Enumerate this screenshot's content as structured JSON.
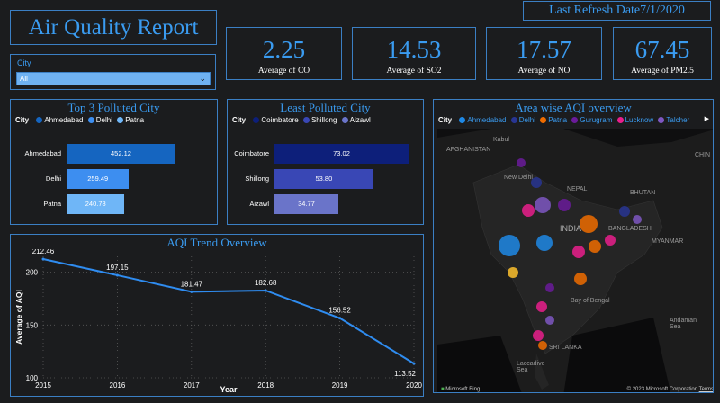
{
  "header": {
    "title": "Air Quality Report",
    "refresh_label": "Last Refresh Date7/1/2020"
  },
  "cards": [
    {
      "value": "2.25",
      "label": "Average of CO"
    },
    {
      "value": "14.53",
      "label": "Average of SO2"
    },
    {
      "value": "17.57",
      "label": "Average of NO"
    },
    {
      "value": "67.45",
      "label": "Average of PM2.5"
    }
  ],
  "filter": {
    "label": "City",
    "selected": "All"
  },
  "top_polluted": {
    "title": "Top 3 Polluted City",
    "legend_title": "City",
    "legend": [
      {
        "name": "Ahmedabad",
        "color": "#1565c0"
      },
      {
        "name": "Delhi",
        "color": "#3d8ef0"
      },
      {
        "name": "Patna",
        "color": "#6fb6f7"
      }
    ]
  },
  "least_polluted": {
    "title": "Least Polluted City",
    "legend_title": "City",
    "legend": [
      {
        "name": "Coimbatore",
        "color": "#0d1f7a"
      },
      {
        "name": "Shillong",
        "color": "#3947b5"
      },
      {
        "name": "Aizawl",
        "color": "#6a74c9"
      }
    ]
  },
  "trend": {
    "title": "AQI Trend Overview",
    "xlabel": "Year",
    "ylabel": "Average of AQI"
  },
  "map": {
    "title": "Area wise AQI overview",
    "legend_title": "City",
    "legend": [
      {
        "name": "Ahmedabad",
        "color": "#1e88e5"
      },
      {
        "name": "Delhi",
        "color": "#283593"
      },
      {
        "name": "Patna",
        "color": "#ef6c00"
      },
      {
        "name": "Gurugram",
        "color": "#6a1b9a"
      },
      {
        "name": "Lucknow",
        "color": "#e91e8c"
      },
      {
        "name": "Talcher",
        "color": "#7e57c2"
      }
    ],
    "labels": {
      "kabul": "Kabul",
      "afghanistan": "AFGHANISTAN",
      "new_delhi": "New Delhi",
      "nepal": "NEPAL",
      "bhutan": "BHUTAN",
      "india": "INDIA",
      "bangladesh": "BANGLADESH",
      "myanmar": "MYANMAR",
      "chi": "CHIN",
      "bay": "Bay of Bengal",
      "srilanka": "SRI LANKA",
      "laccadive": "Laccadive Sea",
      "andaman": "Andaman Sea"
    },
    "logo": "Microsoft Bing",
    "copyright": "© 2023 Microsoft Corporation",
    "terms": "Terms"
  },
  "chart_data": [
    {
      "type": "bar",
      "title": "Top 3 Polluted City",
      "categories": [
        "Ahmedabad",
        "Delhi",
        "Patna"
      ],
      "values": [
        452.12,
        259.49,
        240.78
      ],
      "labels": [
        "452.12",
        "259.49",
        "240.78"
      ],
      "colors": [
        "#1565c0",
        "#3d8ef0",
        "#6fb6f7"
      ],
      "orientation": "horizontal",
      "xlim": [
        0,
        452.12
      ]
    },
    {
      "type": "bar",
      "title": "Least Polluted City",
      "categories": [
        "Coimbatore",
        "Shillong",
        "Aizawl"
      ],
      "values": [
        73.02,
        53.8,
        34.77
      ],
      "labels": [
        "73.02",
        "53.80",
        "34.77"
      ],
      "colors": [
        "#0d1f7a",
        "#3947b5",
        "#6a74c9"
      ],
      "orientation": "horizontal",
      "xlim": [
        0,
        73.02
      ]
    },
    {
      "type": "line",
      "title": "AQI Trend Overview",
      "xlabel": "Year",
      "ylabel": "Average of AQI",
      "x": [
        2015,
        2016,
        2017,
        2018,
        2019,
        2020
      ],
      "y": [
        212.46,
        197.15,
        181.47,
        182.68,
        156.52,
        113.52
      ],
      "labels": [
        "212.46",
        "197.15",
        "181.47",
        "182.68",
        "156.52",
        "113.52"
      ],
      "yticks": [
        100,
        150,
        200
      ],
      "ylim": [
        100,
        215
      ],
      "color": "#2f8cf0",
      "grid": true
    }
  ]
}
